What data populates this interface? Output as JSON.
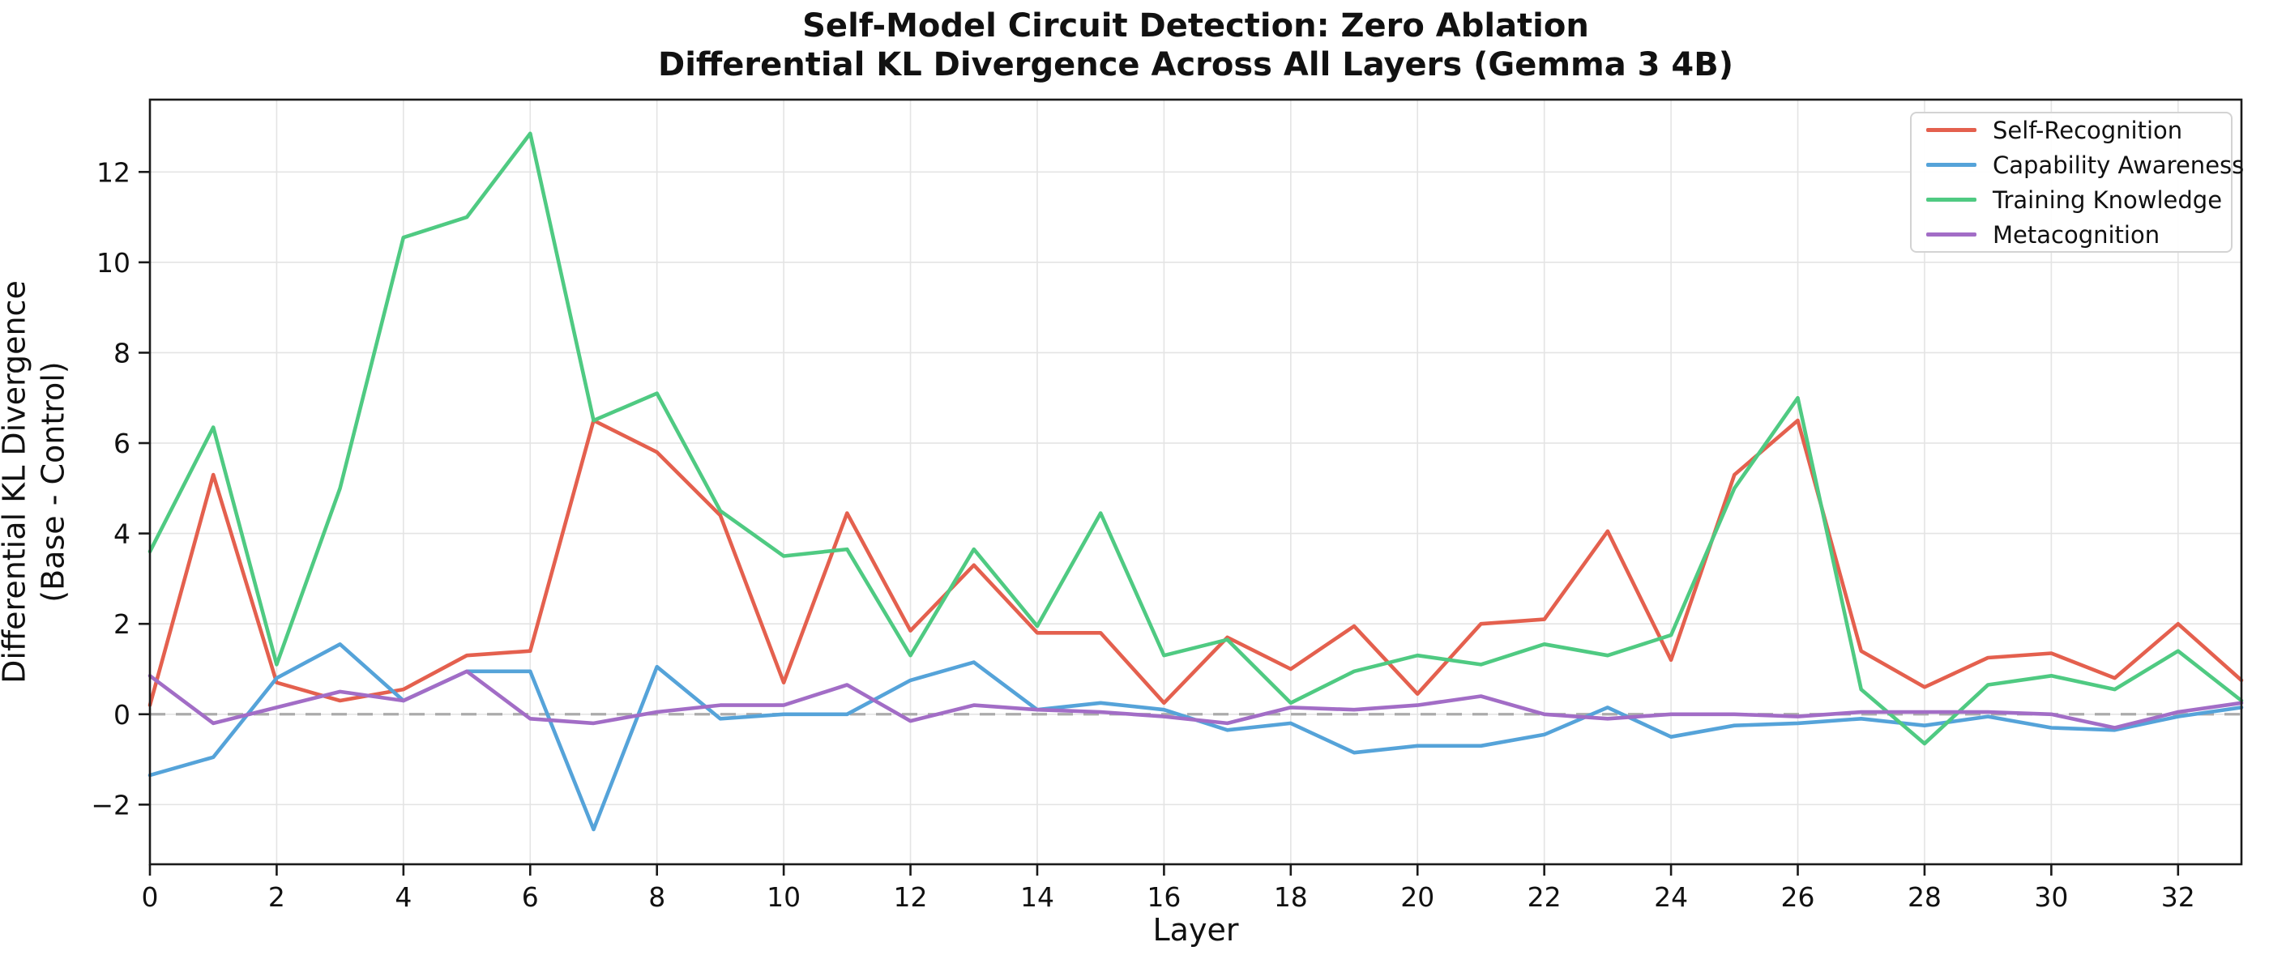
{
  "title": {
    "line1": "Self-Model Circuit Detection: Zero Ablation",
    "line2": "Differential KL Divergence Across All Layers (Gemma 3 4B)"
  },
  "axes": {
    "xlabel": "Layer",
    "ylabel_line1": "Differential KL Divergence",
    "ylabel_line2": "(Base - Control)"
  },
  "chart_data": {
    "type": "line",
    "x": [
      0,
      1,
      2,
      3,
      4,
      5,
      6,
      7,
      8,
      9,
      10,
      11,
      12,
      13,
      14,
      15,
      16,
      17,
      18,
      19,
      20,
      21,
      22,
      23,
      24,
      25,
      26,
      27,
      28,
      29,
      30,
      31,
      32,
      33
    ],
    "x_ticks": [
      0,
      2,
      4,
      6,
      8,
      10,
      12,
      14,
      16,
      18,
      20,
      22,
      24,
      26,
      28,
      30,
      32
    ],
    "y_ticks": [
      -2,
      0,
      2,
      4,
      6,
      8,
      10,
      12
    ],
    "xlim": [
      0,
      33
    ],
    "ylim": [
      -3.32,
      13.6
    ],
    "grid": true,
    "legend_position": "upper right",
    "zero_line": {
      "value": 0,
      "style": "dashed",
      "color": "#ababab"
    },
    "series": [
      {
        "name": "Self-Recognition",
        "color": "#e4604e",
        "values": [
          0.2,
          5.3,
          0.7,
          0.3,
          0.55,
          1.3,
          1.4,
          6.5,
          5.8,
          4.4,
          0.7,
          4.45,
          1.85,
          3.3,
          1.8,
          1.8,
          0.25,
          1.7,
          1.0,
          1.95,
          0.45,
          2.0,
          2.1,
          4.05,
          1.2,
          5.3,
          6.5,
          1.4,
          0.6,
          1.25,
          1.35,
          0.8,
          2.0,
          0.75
        ]
      },
      {
        "name": "Capability Awareness",
        "color": "#55a3d9",
        "values": [
          -1.35,
          -0.95,
          0.8,
          1.55,
          0.3,
          0.95,
          0.95,
          -2.55,
          1.05,
          -0.1,
          0.0,
          0.0,
          0.75,
          1.15,
          0.1,
          0.25,
          0.1,
          -0.35,
          -0.2,
          -0.85,
          -0.7,
          -0.7,
          -0.45,
          0.15,
          -0.5,
          -0.25,
          -0.2,
          -0.1,
          -0.25,
          -0.05,
          -0.3,
          -0.35,
          -0.05,
          0.15
        ]
      },
      {
        "name": "Training Knowledge",
        "color": "#4fca82",
        "values": [
          3.6,
          6.35,
          1.1,
          5.0,
          10.55,
          11.0,
          12.85,
          6.5,
          7.1,
          4.5,
          3.5,
          3.65,
          1.3,
          3.65,
          1.95,
          4.45,
          1.3,
          1.65,
          0.25,
          0.95,
          1.3,
          1.1,
          1.55,
          1.3,
          1.75,
          5.0,
          7.0,
          0.55,
          -0.65,
          0.65,
          0.85,
          0.55,
          1.4,
          0.3
        ]
      },
      {
        "name": "Metacognition",
        "color": "#a26dc6",
        "values": [
          0.85,
          -0.2,
          0.15,
          0.5,
          0.3,
          0.95,
          -0.1,
          -0.2,
          0.05,
          0.2,
          0.2,
          0.65,
          -0.15,
          0.2,
          0.1,
          0.05,
          -0.05,
          -0.2,
          0.15,
          0.1,
          0.2,
          0.4,
          0.0,
          -0.1,
          0.0,
          0.0,
          -0.05,
          0.05,
          0.05,
          0.05,
          0.0,
          -0.3,
          0.05,
          0.25
        ]
      }
    ]
  }
}
